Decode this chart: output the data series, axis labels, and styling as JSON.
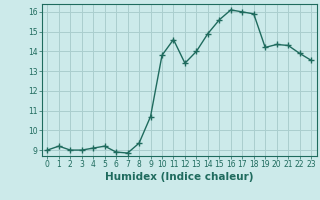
{
  "x": [
    0,
    1,
    2,
    3,
    4,
    5,
    6,
    7,
    8,
    9,
    10,
    11,
    12,
    13,
    14,
    15,
    16,
    17,
    18,
    19,
    20,
    21,
    22,
    23
  ],
  "y": [
    9.0,
    9.2,
    9.0,
    9.0,
    9.1,
    9.2,
    8.9,
    8.85,
    9.35,
    10.7,
    13.8,
    14.6,
    13.4,
    14.0,
    14.9,
    15.6,
    16.1,
    16.0,
    15.9,
    14.2,
    14.35,
    14.3,
    13.9,
    13.55
  ],
  "xlabel": "Humidex (Indice chaleur)",
  "ylim_min": 8.7,
  "ylim_max": 16.4,
  "xlim_min": -0.5,
  "xlim_max": 23.5,
  "yticks": [
    9,
    10,
    11,
    12,
    13,
    14,
    15,
    16
  ],
  "xticks": [
    0,
    1,
    2,
    3,
    4,
    5,
    6,
    7,
    8,
    9,
    10,
    11,
    12,
    13,
    14,
    15,
    16,
    17,
    18,
    19,
    20,
    21,
    22,
    23
  ],
  "line_color": "#1f6b5e",
  "marker": "+",
  "marker_size": 4,
  "marker_linewidth": 1.0,
  "bg_color": "#cceaea",
  "grid_color": "#aacece",
  "tick_color": "#1f6b5e",
  "label_color": "#1f6b5e",
  "tick_fontsize": 5.5,
  "xlabel_fontsize": 7.5,
  "linewidth": 1.0
}
